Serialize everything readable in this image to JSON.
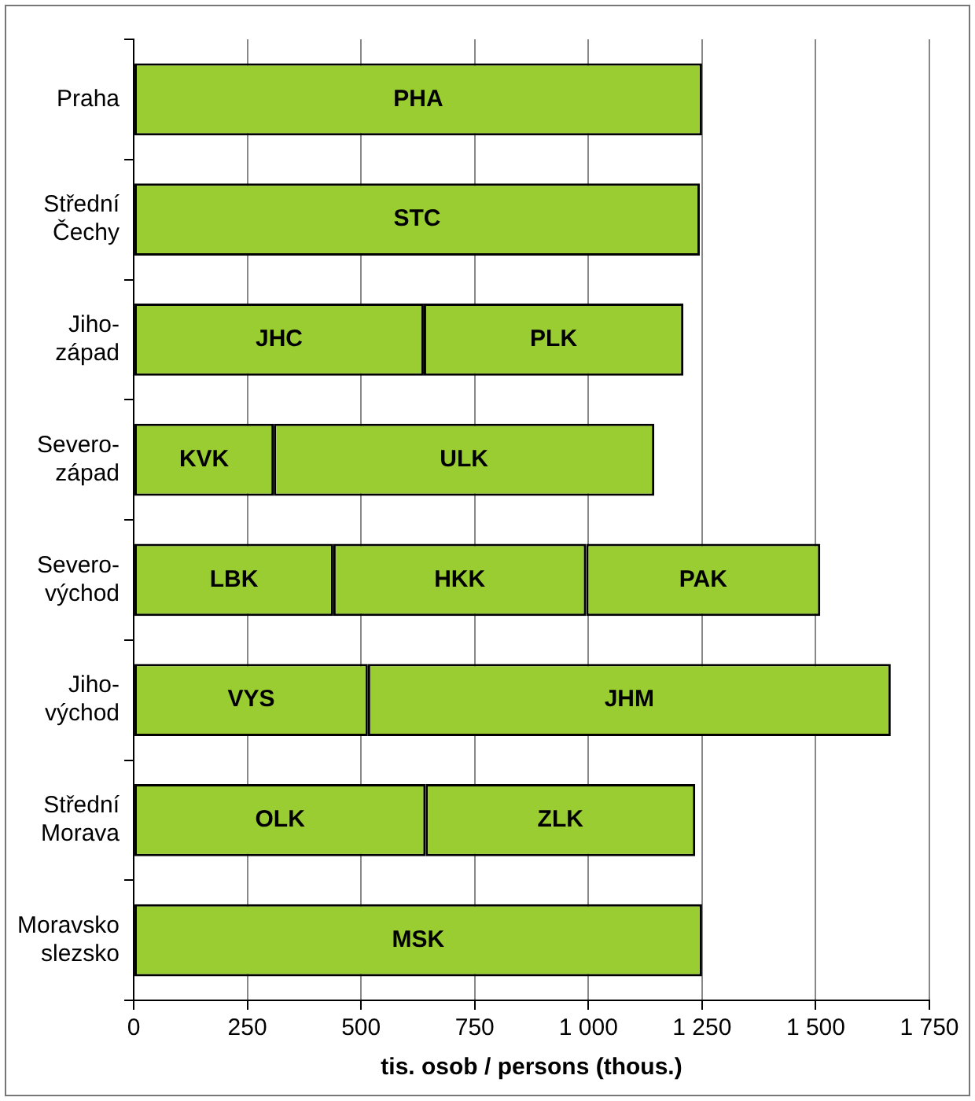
{
  "chart_data": {
    "type": "bar",
    "orientation": "horizontal",
    "stacked": true,
    "categories": [
      "Praha",
      "Střední Čechy",
      "Jiho-západ",
      "Severo-západ",
      "Severo-východ",
      "Jiho-východ",
      "Střední Morava",
      "Moravsko slezsko"
    ],
    "series": [
      {
        "color": "#9acd32",
        "values": [
          1250,
          1245,
          638,
          308,
          439,
          515,
          642,
          1250
        ],
        "value_labels": [
          "PHA",
          "STC",
          "JHC",
          "KVK",
          "LBK",
          "VYS",
          "OLK",
          "MSK"
        ]
      },
      {
        "color": "#9acd32",
        "values": [
          null,
          null,
          571,
          837,
          556,
          1150,
          593,
          null
        ],
        "value_labels": [
          null,
          null,
          "PLK",
          "ULK",
          "HKK",
          "JHM",
          "ZLK",
          null
        ]
      },
      {
        "color": "#9acd32",
        "values": [
          null,
          null,
          null,
          null,
          515,
          null,
          null,
          null
        ],
        "value_labels": [
          null,
          null,
          null,
          null,
          "PAK",
          null,
          null,
          null
        ]
      }
    ],
    "xlabel": "tis. osob / persons (thous.)",
    "xlim": [
      0,
      1750
    ],
    "xticks": [
      0,
      250,
      500,
      750,
      {
        "value": 1000,
        "label": "1 000"
      },
      {
        "value": 1250,
        "label": "1 250"
      },
      {
        "value": 1500,
        "label": "1 500"
      },
      {
        "value": 1750,
        "label": "1 750"
      }
    ],
    "grid": "x",
    "legend": false
  }
}
